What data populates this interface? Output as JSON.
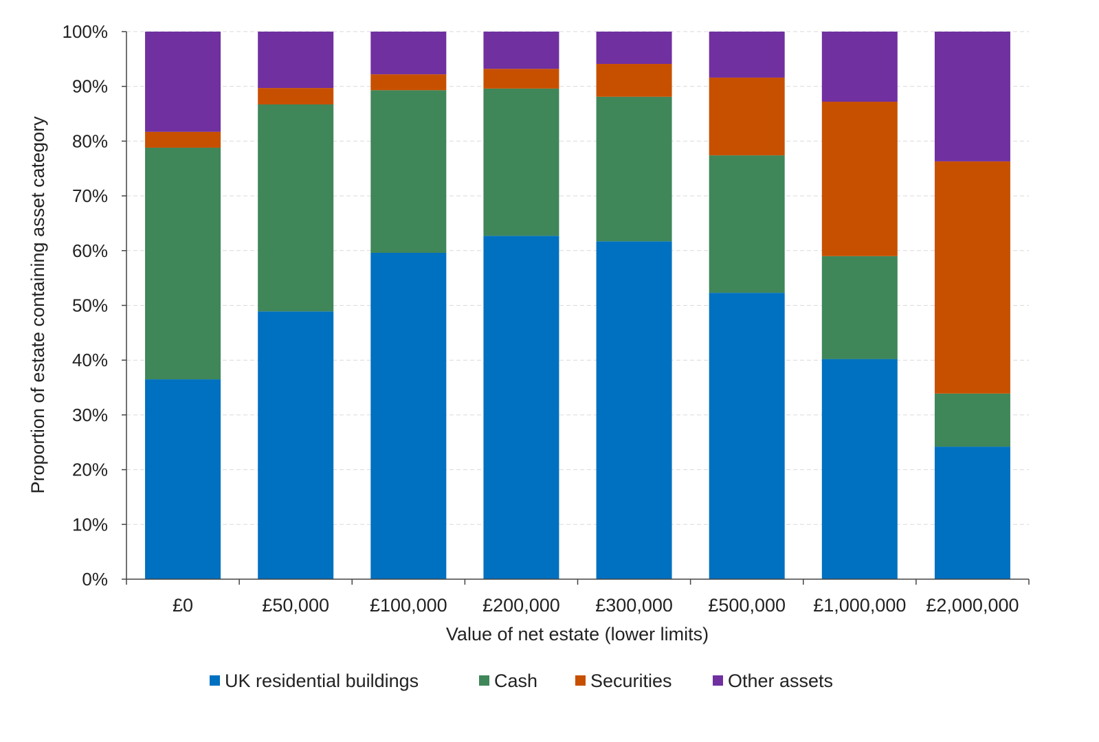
{
  "chart_data": {
    "type": "bar",
    "stacked": true,
    "xlabel": "Value of net estate (lower limits)",
    "ylabel": "Proportion of estate containing asset category",
    "ylim": [
      0,
      100
    ],
    "yticks": [
      "0%",
      "10%",
      "20%",
      "30%",
      "40%",
      "50%",
      "60%",
      "70%",
      "80%",
      "90%",
      "100%"
    ],
    "grid": true,
    "legend_position": "bottom",
    "categories": [
      "£0",
      "£50,000",
      "£100,000",
      "£200,000",
      "£300,000",
      "£500,000",
      "£1,000,000",
      "£2,000,000"
    ],
    "series": [
      {
        "name": "UK residential buildings",
        "color": "#0070c0",
        "values": [
          36.5,
          48.9,
          59.6,
          62.7,
          61.7,
          52.3,
          40.2,
          24.2
        ]
      },
      {
        "name": "Cash",
        "color": "#3f8659",
        "values": [
          42.3,
          37.8,
          29.7,
          26.9,
          26.4,
          25.1,
          18.8,
          9.7
        ]
      },
      {
        "name": "Securities",
        "color": "#c75000",
        "values": [
          2.9,
          3.0,
          2.9,
          3.6,
          6.0,
          14.2,
          28.2,
          42.4
        ]
      },
      {
        "name": "Other assets",
        "color": "#7030a0",
        "values": [
          18.3,
          10.3,
          7.8,
          6.8,
          5.9,
          8.4,
          12.8,
          23.7
        ]
      }
    ]
  }
}
